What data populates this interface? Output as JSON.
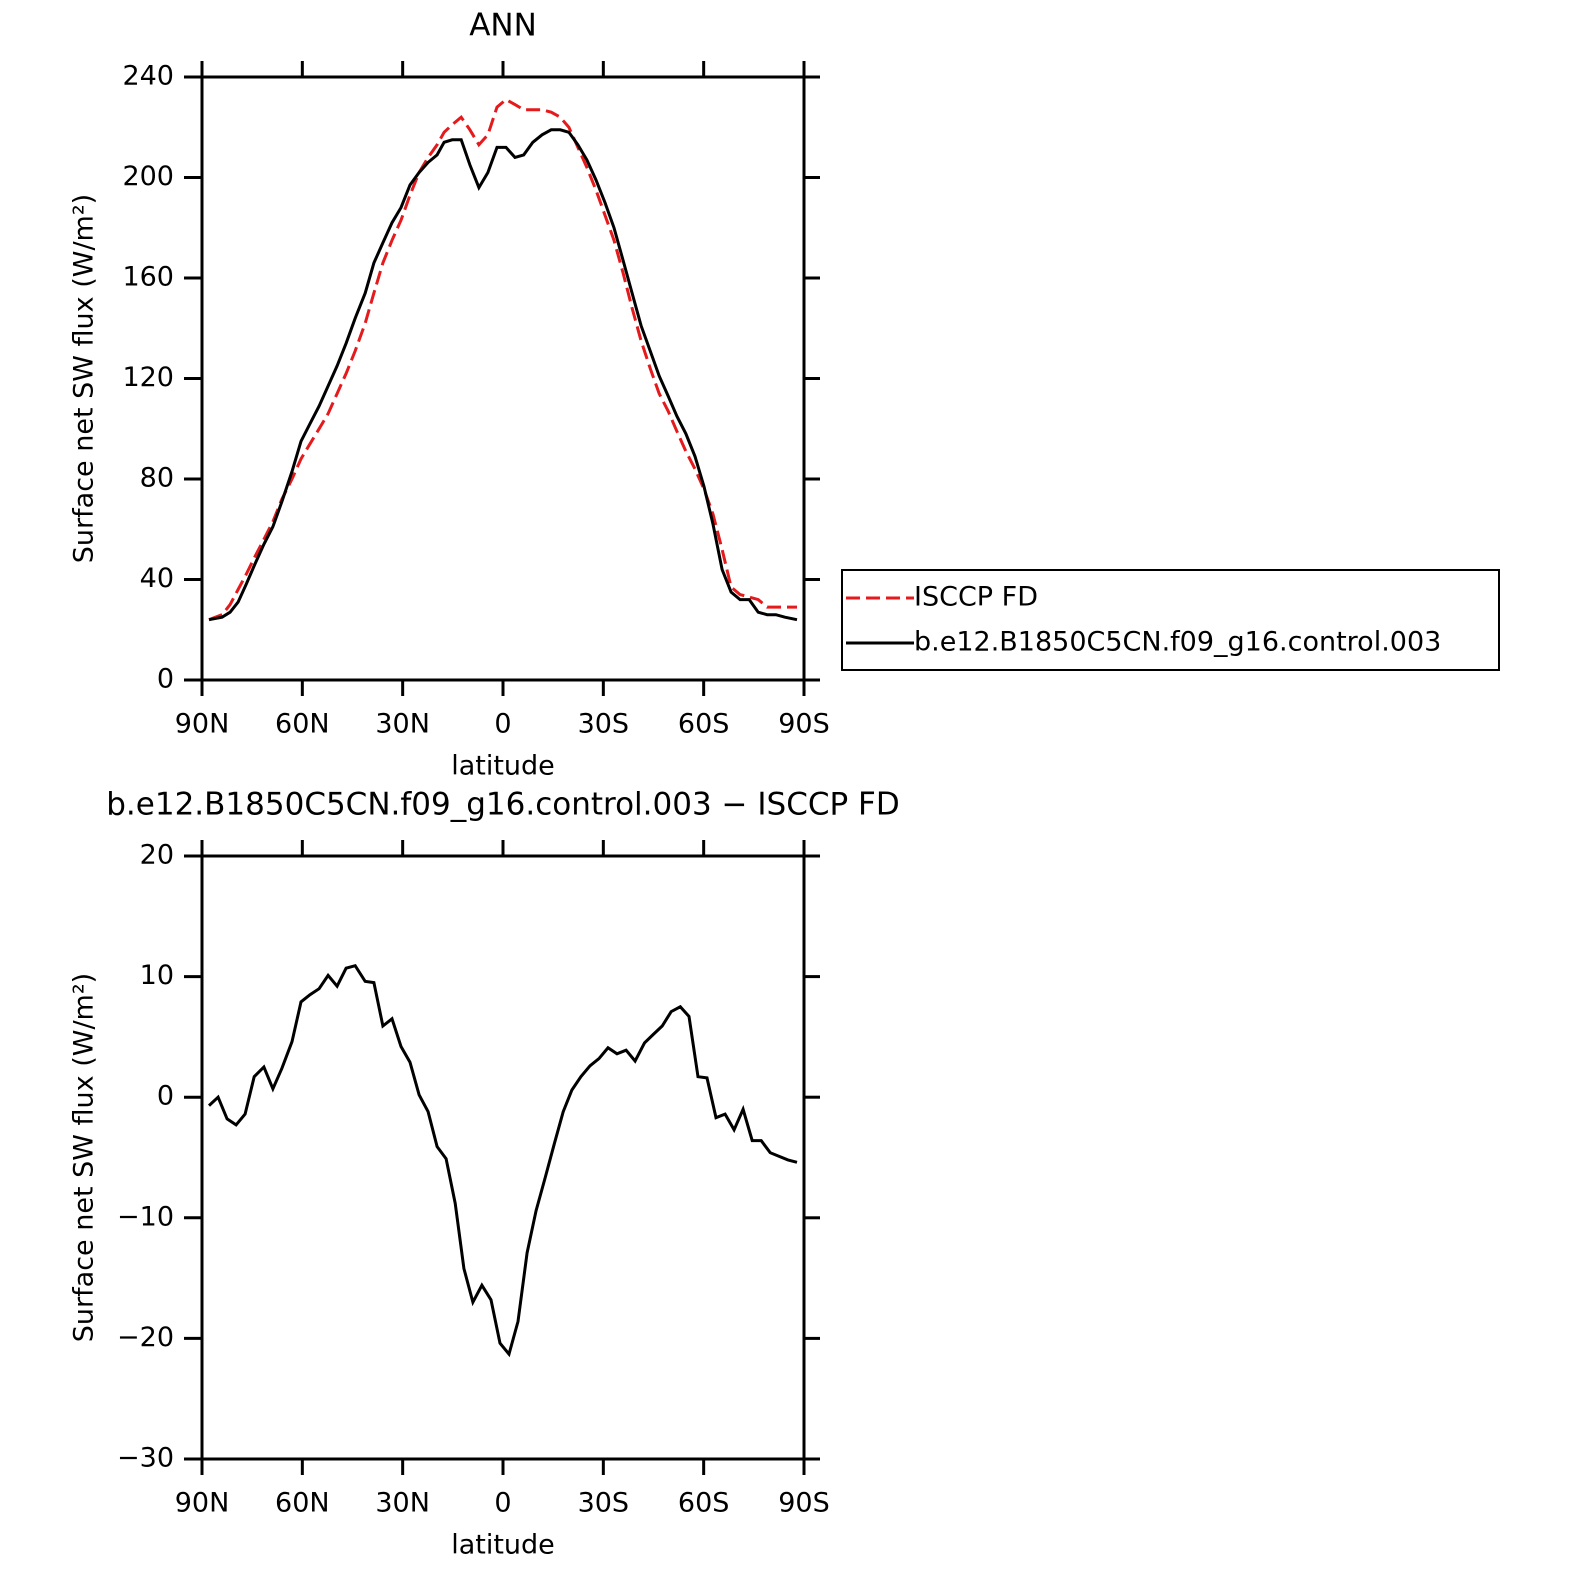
{
  "chart_data": [
    {
      "type": "line",
      "title": "ANN",
      "xlabel": "latitude",
      "ylabel": "Surface net SW flux (W/m²)",
      "xlim": [
        90,
        -90
      ],
      "ylim": [
        0,
        240
      ],
      "xticks": [
        {
          "value": 90,
          "label": "90N"
        },
        {
          "value": 60,
          "label": "60N"
        },
        {
          "value": 30,
          "label": "30N"
        },
        0,
        {
          "value": -30,
          "label": "30S"
        },
        {
          "value": -60,
          "label": "60S"
        },
        {
          "value": -90,
          "label": "90S"
        }
      ],
      "yticks": [
        0,
        40,
        80,
        120,
        160,
        200,
        240
      ],
      "legend": "right",
      "x": [
        87.9,
        84,
        81.6,
        79.2,
        76.8,
        74.2,
        71.5,
        68.8,
        66.1,
        63.1,
        60.4,
        57.7,
        55,
        52.3,
        49.6,
        46.9,
        44.2,
        41.2,
        38.6,
        35.9,
        33.2,
        30.5,
        27.8,
        25.1,
        22.4,
        19.7,
        17.6,
        15.2,
        12.5,
        9.9,
        7.2,
        4.5,
        1.8,
        -0.9,
        -3.6,
        -6.2,
        -8.9,
        -11.7,
        -14.4,
        -17.1,
        -19.7,
        -22.4,
        -25.1,
        -27.8,
        -30.5,
        -33.2,
        -35.9,
        -38.6,
        -41.3,
        -44,
        -46.7,
        -49.4,
        -52,
        -54.7,
        -57.4,
        -60.1,
        -62.8,
        -65.5,
        -68.2,
        -70.9,
        -73.6,
        -76.3,
        -79,
        -81.6,
        -84.3,
        -87.9
      ],
      "series": [
        {
          "name": "ISCCP FD",
          "color": "#e41a1c",
          "dash": "dashed",
          "values": [
            24,
            26,
            30,
            36,
            42,
            49,
            56,
            63,
            72,
            80,
            88,
            94,
            100,
            106,
            114,
            122,
            131,
            142,
            154,
            166,
            175,
            183,
            193,
            202,
            208,
            213,
            218,
            221,
            224,
            219,
            213,
            217,
            228,
            231,
            229,
            227,
            227,
            227,
            226,
            224,
            220,
            212,
            204,
            195,
            185,
            175,
            162,
            148,
            135,
            124,
            114,
            107,
            99,
            91,
            84,
            76,
            66,
            52,
            37,
            34,
            33,
            32,
            29,
            29,
            29,
            29
          ]
        },
        {
          "name": "b.e12.B1850C5CN.f09_g16.control.003",
          "color": "#000000",
          "dash": "solid",
          "values": [
            24,
            25,
            27,
            31,
            38,
            46,
            54,
            61,
            71,
            83,
            95,
            102,
            109,
            117,
            125,
            134,
            144,
            154,
            166,
            174,
            182,
            188,
            197,
            202,
            206,
            209,
            214,
            215,
            215,
            205,
            196,
            202,
            212,
            212,
            208,
            209,
            214,
            217,
            219,
            219,
            218,
            213,
            207,
            199,
            190,
            180,
            167,
            154,
            141,
            131,
            121,
            113,
            105,
            98,
            89,
            77,
            62,
            44,
            35,
            32,
            32,
            27,
            26,
            26,
            25,
            24
          ]
        }
      ]
    },
    {
      "type": "line",
      "title": "b.e12.B1850C5CN.f09_g16.control.003 − ISCCP FD",
      "xlabel": "latitude",
      "ylabel": "Surface net SW flux (W/m²)",
      "xlim": [
        90,
        -90
      ],
      "ylim": [
        -30,
        20
      ],
      "xticks": [
        {
          "value": 90,
          "label": "90N"
        },
        {
          "value": 60,
          "label": "60N"
        },
        {
          "value": 30,
          "label": "30N"
        },
        0,
        {
          "value": -30,
          "label": "30S"
        },
        {
          "value": -60,
          "label": "60S"
        },
        {
          "value": -90,
          "label": "90S"
        }
      ],
      "yticks": [
        {
          "value": -30,
          "label": "−30"
        },
        {
          "value": -20,
          "label": "−20"
        },
        {
          "value": -10,
          "label": "−10"
        },
        0,
        10,
        20
      ],
      "x": [
        87.9,
        85.2,
        82.5,
        79.8,
        77.1,
        74.4,
        71.5,
        68.8,
        66.1,
        63.1,
        60.4,
        57.7,
        55,
        52.3,
        49.6,
        46.9,
        44.2,
        41.2,
        38.6,
        35.9,
        33.2,
        30.5,
        27.8,
        25.1,
        22.4,
        19.7,
        17,
        14.3,
        11.7,
        9,
        6.3,
        3.6,
        0.9,
        -1.8,
        -4.5,
        -7.2,
        -9.9,
        -12.6,
        -15.3,
        -18,
        -20.6,
        -23.3,
        -26,
        -28.7,
        -31.4,
        -34.1,
        -36.8,
        -39.5,
        -42.3,
        -44.9,
        -47.6,
        -50.3,
        -53,
        -55.6,
        -58.3,
        -61,
        -63.7,
        -66.4,
        -69.1,
        -71.8,
        -74.5,
        -77.2,
        -79.9,
        -82.5,
        -85.2,
        -87.9
      ],
      "series": [
        {
          "color": "#000000",
          "dash": "solid",
          "values": [
            -0.7,
            0,
            -1.8,
            -2.3,
            -1.4,
            1.7,
            2.5,
            0.7,
            2.4,
            4.6,
            7.9,
            8.5,
            9,
            10.1,
            9.2,
            10.7,
            10.9,
            9.6,
            9.5,
            5.9,
            6.5,
            4.2,
            2.9,
            0.2,
            -1.2,
            -4.1,
            -5.1,
            -8.8,
            -14.2,
            -17,
            -15.6,
            -16.8,
            -20.4,
            -21.3,
            -18.6,
            -12.9,
            -9.4,
            -6.7,
            -3.9,
            -1.2,
            0.6,
            1.7,
            2.6,
            3.2,
            4.1,
            3.6,
            3.9,
            3,
            4.5,
            5.2,
            5.9,
            7.1,
            7.5,
            6.7,
            1.7,
            1.6,
            -1.7,
            -1.4,
            -2.7,
            -1,
            -3.6,
            -3.6,
            -4.6,
            -4.9,
            -5.2,
            -5.4
          ]
        }
      ]
    }
  ]
}
